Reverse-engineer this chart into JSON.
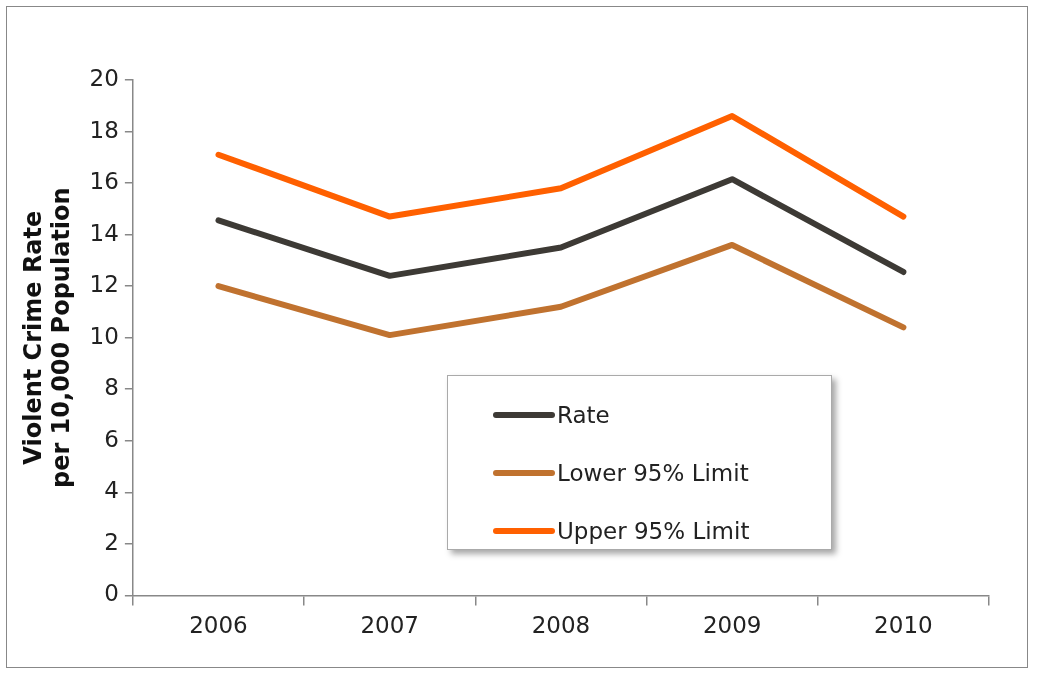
{
  "chart_data": {
    "type": "line",
    "ylabel": "Violent Crime Rate per 10,000 Population",
    "categories": [
      "2006",
      "2007",
      "2008",
      "2009",
      "2010"
    ],
    "series": [
      {
        "name": "Rate",
        "color": "#3d3a35",
        "values": [
          14.55,
          12.4,
          13.5,
          16.15,
          12.55
        ]
      },
      {
        "name": "Lower 95% Limit",
        "color": "#c0722f",
        "values": [
          12.0,
          10.1,
          11.2,
          13.6,
          10.4
        ]
      },
      {
        "name": "Upper 95% Limit",
        "color": "#ff6000",
        "values": [
          17.1,
          14.7,
          15.8,
          18.6,
          14.7
        ]
      }
    ],
    "ylim": [
      0,
      20
    ],
    "yticks": [
      0,
      2,
      4,
      6,
      8,
      10,
      12,
      14,
      16,
      18,
      20
    ],
    "grid": false,
    "legend": "bottom",
    "marker": "none",
    "line_style": "solid"
  }
}
